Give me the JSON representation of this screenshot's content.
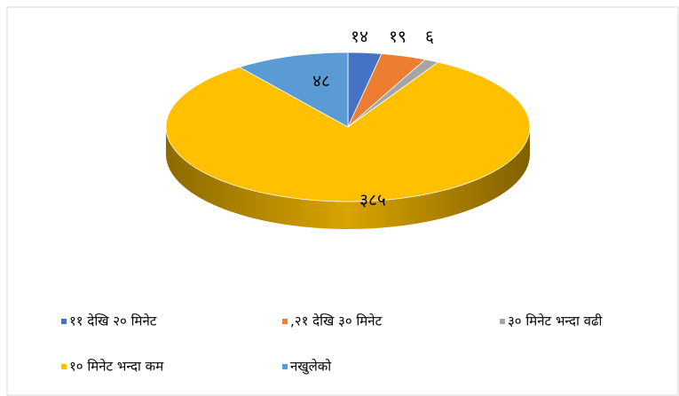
{
  "chart_data": {
    "type": "pie3d",
    "categories": [
      "११ देखि २० मिनेट",
      ",२१ देखि ३० मिनेट",
      "३० मिनेट भन्दा वढी",
      "१० मिनेट भन्दा कम",
      "नखुलेको"
    ],
    "values": [
      14,
      19,
      6,
      385,
      48
    ],
    "value_labels": [
      "१४",
      "१९",
      "६",
      "३८५",
      "४८"
    ],
    "colors": [
      "#4472c4",
      "#ed7d31",
      "#a5a5a5",
      "#ffc000",
      "#5b9bd5"
    ],
    "legend": "bottom"
  }
}
